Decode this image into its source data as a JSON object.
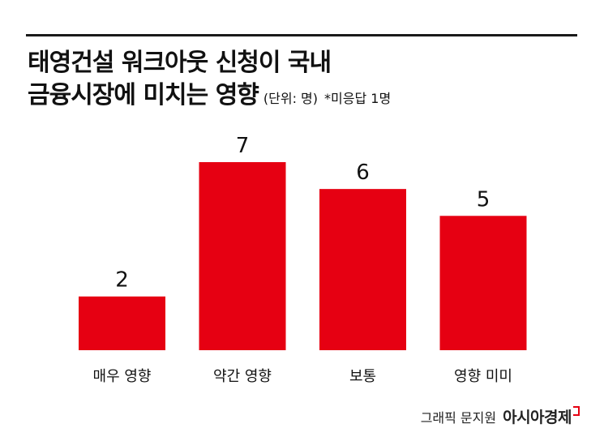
{
  "title": {
    "line1": "태영건설 워크아웃 신청이 국내",
    "line2": "금융시장에 미치는 영향",
    "unit": "(단위: 명)",
    "note": "*미응답 1명"
  },
  "credit": {
    "graphic": "그래픽 문지원",
    "brand": "아시아경제"
  },
  "colors": {
    "bar": "#e60012",
    "text": "#111111",
    "rule": "#1a1a1a"
  },
  "chart_data": {
    "type": "bar",
    "categories": [
      "매우 영향",
      "약간 영향",
      "보통",
      "영향 미미"
    ],
    "values": [
      2,
      7,
      6,
      5
    ],
    "ylim": [
      0,
      7
    ],
    "grid": false,
    "data_labels": true
  }
}
